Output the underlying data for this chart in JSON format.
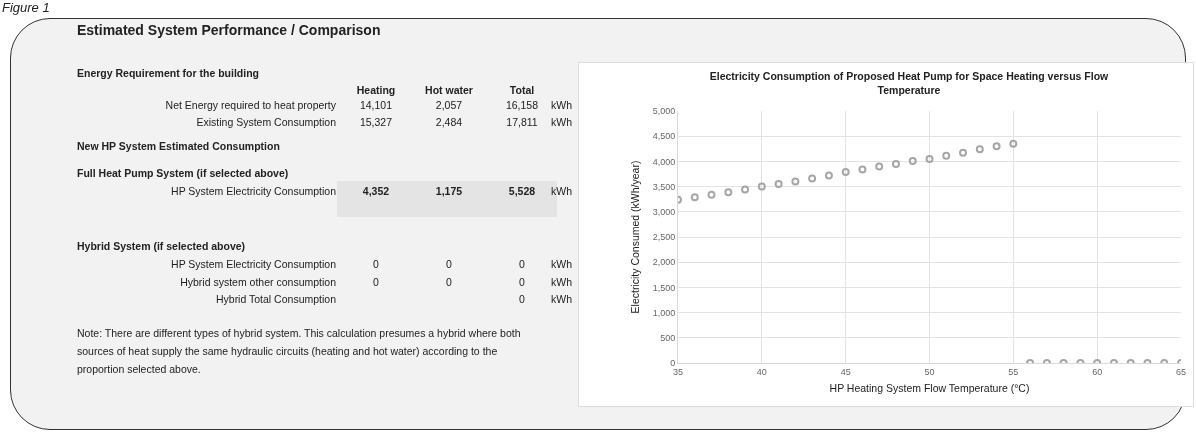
{
  "chart_data": [
    {
      "type": "other",
      "title": "Estimated System Performance / Comparison",
      "annotations": [
        "Figure 1",
        "Energy Requirement for the building",
        "Heating",
        "Hot water",
        "Total",
        "Net Energy required to heat property",
        "14,101",
        "2,057",
        "16,158",
        "kWh",
        "Existing System Consumption",
        "15,327",
        "2,484",
        "17,811",
        "kWh",
        "New HP System Estimated Consumption",
        "Full Heat Pump System (if selected above)",
        "HP System Electricity Consumption",
        "4,352",
        "1,175",
        "5,528",
        "kWh",
        "Hybrid System (if selected above)",
        "HP System Electricity Consumption",
        "0",
        "0",
        "0",
        "kWh",
        "Hybrid system other consumption",
        "0",
        "0",
        "0",
        "kWh",
        "Hybrid Total Consumption",
        "0",
        "kWh",
        "Note: There are different types of hybrid system. This calculation presumes a hybrid where both sources of heat supply the same hydraulic circuits (heating and hot water) according to the proportion selected above."
      ]
    },
    {
      "type": "scatter",
      "title": "Electricity Consumption of Proposed Heat Pump for Space Heating versus Flow Temperature",
      "xlabel": "HP Heating System Flow Temperature (°C)",
      "ylabel": "Electricity Consumed (kWh/year)",
      "x": [
        35,
        36,
        37,
        38,
        39,
        40,
        41,
        42,
        43,
        44,
        45,
        46,
        47,
        48,
        49,
        50,
        51,
        52,
        53,
        54,
        55,
        56,
        57,
        58,
        59,
        60,
        61,
        62,
        63,
        64,
        65
      ],
      "series": [
        {
          "color": "#a6a6a6",
          "values": [
            3240,
            3290,
            3340,
            3390,
            3440,
            3500,
            3550,
            3600,
            3660,
            3720,
            3790,
            3840,
            3900,
            3950,
            4010,
            4050,
            4110,
            4170,
            4240,
            4300,
            4350,
            0,
            0,
            0,
            0,
            0,
            0,
            0,
            0,
            0,
            0
          ]
        }
      ],
      "xlim": [
        35,
        65
      ],
      "xticks": [
        35,
        40,
        45,
        50,
        55,
        60,
        65
      ],
      "ylim": [
        0,
        5000
      ],
      "yticks": [
        0,
        500,
        {
          "value": 1000,
          "label": "1,000"
        },
        {
          "value": 1500,
          "label": "1,500"
        },
        {
          "value": 2000,
          "label": "2,000"
        },
        {
          "value": 2500,
          "label": "2,500"
        },
        {
          "value": 3000,
          "label": "3,000"
        },
        {
          "value": 3500,
          "label": "3,500"
        },
        {
          "value": 4000,
          "label": "4,000"
        },
        {
          "value": 4500,
          "label": "4,500"
        },
        {
          "value": 5000,
          "label": "5,000"
        }
      ],
      "grid": true,
      "marker": "circle"
    }
  ]
}
